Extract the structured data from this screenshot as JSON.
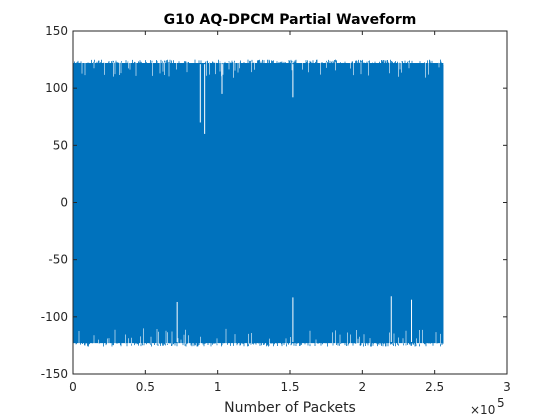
{
  "chart_data": {
    "type": "line",
    "title": "G10 AQ-DPCM Partial Waveform",
    "xlabel": "Number of Packets",
    "ylabel": "",
    "x_exponent_label": "×10",
    "x_exponent_power": "5",
    "xlim": [
      0,
      300000
    ],
    "ylim": [
      -150,
      150
    ],
    "x_ticks": [
      {
        "value": 0,
        "label": "0"
      },
      {
        "value": 50000,
        "label": "0.5"
      },
      {
        "value": 100000,
        "label": "1"
      },
      {
        "value": 150000,
        "label": "1.5"
      },
      {
        "value": 200000,
        "label": "2"
      },
      {
        "value": 250000,
        "label": "2.5"
      },
      {
        "value": 300000,
        "label": "3"
      }
    ],
    "y_ticks": [
      {
        "value": 150,
        "label": "150"
      },
      {
        "value": 100,
        "label": "100"
      },
      {
        "value": 50,
        "label": "50"
      },
      {
        "value": 0,
        "label": "0"
      },
      {
        "value": -50,
        "label": "-50"
      },
      {
        "value": -100,
        "label": "-100"
      },
      {
        "value": -150,
        "label": "-150"
      }
    ],
    "grid": false,
    "series": [
      {
        "color": "#0072BD",
        "x_range": [
          0,
          256000
        ],
        "envelope_upper": 125,
        "envelope_lower": -126,
        "upper_dips": [
          {
            "x": 88000,
            "y": 70
          },
          {
            "x": 91000,
            "y": 60
          },
          {
            "x": 103000,
            "y": 95
          },
          {
            "x": 152000,
            "y": 92
          }
        ],
        "lower_spikes": [
          {
            "x": 72000,
            "y": -87
          },
          {
            "x": 152000,
            "y": -83
          },
          {
            "x": 220000,
            "y": -82
          },
          {
            "x": 234000,
            "y": -85
          }
        ]
      }
    ]
  }
}
